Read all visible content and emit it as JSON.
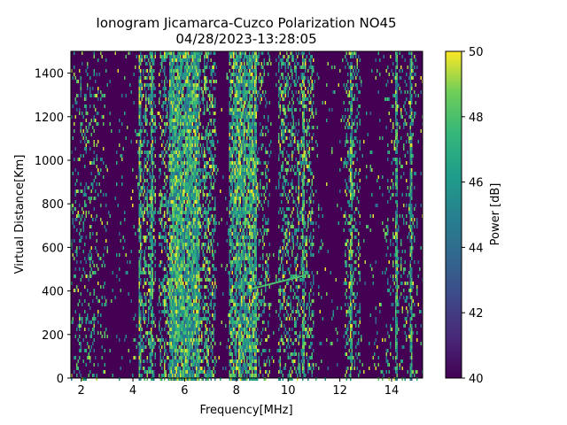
{
  "chart_data": {
    "type": "heatmap",
    "title": "Ionogram Jicamarca-Cuzco Polarization NO45",
    "subtitle": "04/28/2023-13:28:05",
    "xlabel": "Frequency[MHz]",
    "ylabel": "Virtual Distance[Km]",
    "xlim": [
      1.6,
      15.2
    ],
    "ylim": [
      0,
      1500
    ],
    "xticks": [
      2,
      4,
      6,
      8,
      10,
      12,
      14
    ],
    "yticks": [
      0,
      200,
      400,
      600,
      800,
      1000,
      1200,
      1400
    ],
    "colorbar": {
      "label": "Power [dB]",
      "range": [
        40,
        50
      ],
      "ticks": [
        40,
        42,
        44,
        46,
        48,
        50
      ],
      "colormap": "viridis"
    },
    "background_value_db": 40,
    "bands": [
      {
        "from_mhz": 1.6,
        "to_mhz": 2.5,
        "intensity": 0.18
      },
      {
        "from_mhz": 2.5,
        "to_mhz": 3.0,
        "intensity": 0.12
      },
      {
        "from_mhz": 4.2,
        "to_mhz": 4.9,
        "intensity": 0.35
      },
      {
        "from_mhz": 5.0,
        "to_mhz": 5.4,
        "intensity": 0.4
      },
      {
        "from_mhz": 5.4,
        "to_mhz": 6.6,
        "intensity": 0.92
      },
      {
        "from_mhz": 6.6,
        "to_mhz": 7.2,
        "intensity": 0.45
      },
      {
        "from_mhz": 7.7,
        "to_mhz": 8.8,
        "intensity": 0.75
      },
      {
        "from_mhz": 8.8,
        "to_mhz": 9.3,
        "intensity": 0.25
      },
      {
        "from_mhz": 9.6,
        "to_mhz": 11.0,
        "intensity": 0.35
      },
      {
        "from_mhz": 12.2,
        "to_mhz": 12.8,
        "intensity": 0.25
      },
      {
        "from_mhz": 13.8,
        "to_mhz": 15.0,
        "intensity": 0.15
      }
    ],
    "lines_mhz": [
      4.25,
      4.75,
      6.0,
      6.25,
      8.1,
      10.6,
      12.45,
      14.2,
      14.75
    ],
    "trace": {
      "x_mhz": [
        8.6,
        10.6
      ],
      "y_km": [
        410,
        470
      ]
    }
  }
}
